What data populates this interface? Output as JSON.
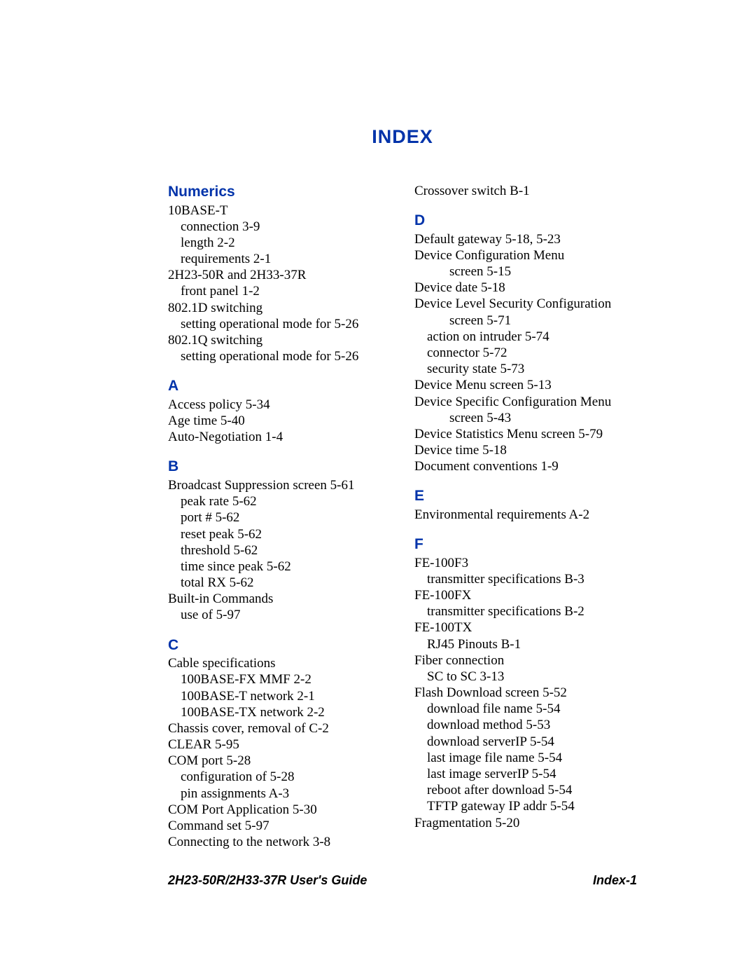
{
  "title": "INDEX",
  "footer": {
    "left": "2H23-50R/2H33-37R User's Guide",
    "right": "Index-1"
  },
  "colors": {
    "heading_blue": "#0033aa",
    "text_black": "#000000",
    "background": "#ffffff"
  },
  "typography": {
    "title_font": "Arial",
    "title_size_pt": 20,
    "title_weight": "bold",
    "section_font": "Arial",
    "section_size_pt": 16,
    "section_weight": "bold",
    "body_font": "Times New Roman",
    "body_size_pt": 14
  },
  "left_col": {
    "sections": {
      "Numerics": {
        "label": "Numerics",
        "items": [
          {
            "t": "10BASE-T",
            "i": 0
          },
          {
            "t": "connection  3-9",
            "i": 1
          },
          {
            "t": "length  2-2",
            "i": 1
          },
          {
            "t": "requirements  2-1",
            "i": 1
          },
          {
            "t": "2H23-50R and 2H33-37R",
            "i": 0
          },
          {
            "t": "front panel  1-2",
            "i": 1
          },
          {
            "t": "802.1D switching",
            "i": 0
          },
          {
            "t": "setting operational mode for  5-26",
            "i": 1
          },
          {
            "t": "802.1Q switching",
            "i": 0
          },
          {
            "t": "setting operational mode for  5-26",
            "i": 1
          }
        ]
      },
      "A": {
        "label": "A",
        "items": [
          {
            "t": "Access policy  5-34",
            "i": 0
          },
          {
            "t": "Age time  5-40",
            "i": 0
          },
          {
            "t": "Auto-Negotiation  1-4",
            "i": 0
          }
        ]
      },
      "B": {
        "label": "B",
        "items": [
          {
            "t": "Broadcast Suppression screen  5-61",
            "i": 0
          },
          {
            "t": "peak rate  5-62",
            "i": 1
          },
          {
            "t": "port #  5-62",
            "i": 1
          },
          {
            "t": "reset peak  5-62",
            "i": 1
          },
          {
            "t": "threshold  5-62",
            "i": 1
          },
          {
            "t": "time since peak  5-62",
            "i": 1
          },
          {
            "t": "total RX  5-62",
            "i": 1
          },
          {
            "t": "Built-in Commands",
            "i": 0
          },
          {
            "t": "use of  5-97",
            "i": 1
          }
        ]
      },
      "C": {
        "label": "C",
        "items": [
          {
            "t": "Cable specifications",
            "i": 0
          },
          {
            "t": "100BASE-FX MMF  2-2",
            "i": 1
          },
          {
            "t": "100BASE-T network  2-1",
            "i": 1
          },
          {
            "t": "100BASE-TX network  2-2",
            "i": 1
          },
          {
            "t": "Chassis cover, removal of  C-2",
            "i": 0
          },
          {
            "t": "CLEAR  5-95",
            "i": 0
          },
          {
            "t": "COM port  5-28",
            "i": 0
          },
          {
            "t": "configuration of  5-28",
            "i": 1
          },
          {
            "t": "pin assignments  A-3",
            "i": 1
          },
          {
            "t": "COM Port Application  5-30",
            "i": 0
          },
          {
            "t": "Command set  5-97",
            "i": 0
          },
          {
            "t": "Connecting to the network  3-8",
            "i": 0
          }
        ]
      }
    }
  },
  "right_col": {
    "top_line": "Crossover switch  B-1",
    "sections": {
      "D": {
        "label": "D",
        "items": [
          {
            "t": "Default gateway  5-18, 5-23",
            "i": 0
          },
          {
            "t": "Device Configuration Menu",
            "i": 0
          },
          {
            "t": "screen  5-15",
            "i": 2
          },
          {
            "t": "Device date  5-18",
            "i": 0
          },
          {
            "t": "Device Level Security Configuration",
            "i": 0
          },
          {
            "t": "screen  5-71",
            "i": 2
          },
          {
            "t": "action on intruder  5-74",
            "i": 1
          },
          {
            "t": "connector  5-72",
            "i": 1
          },
          {
            "t": "security state  5-73",
            "i": 1
          },
          {
            "t": "Device Menu screen  5-13",
            "i": 0
          },
          {
            "t": "Device Specific Configuration Menu",
            "i": 0
          },
          {
            "t": "screen  5-43",
            "i": 2
          },
          {
            "t": "Device Statistics Menu screen  5-79",
            "i": 0
          },
          {
            "t": "Device time  5-18",
            "i": 0
          },
          {
            "t": "Document conventions  1-9",
            "i": 0
          }
        ]
      },
      "E": {
        "label": "E",
        "items": [
          {
            "t": "Environmental requirements  A-2",
            "i": 0
          }
        ]
      },
      "F": {
        "label": "F",
        "items": [
          {
            "t": "FE-100F3",
            "i": 0
          },
          {
            "t": "transmitter specifications  B-3",
            "i": 1
          },
          {
            "t": "FE-100FX",
            "i": 0
          },
          {
            "t": "transmitter specifications  B-2",
            "i": 1
          },
          {
            "t": "FE-100TX",
            "i": 0
          },
          {
            "t": "RJ45 Pinouts  B-1",
            "i": 1
          },
          {
            "t": "Fiber connection",
            "i": 0
          },
          {
            "t": "SC to SC  3-13",
            "i": 1
          },
          {
            "t": "Flash Download screen  5-52",
            "i": 0
          },
          {
            "t": "download file name  5-54",
            "i": 1
          },
          {
            "t": "download method  5-53",
            "i": 1
          },
          {
            "t": "download serverIP  5-54",
            "i": 1
          },
          {
            "t": "last image file name  5-54",
            "i": 1
          },
          {
            "t": "last image serverIP  5-54",
            "i": 1
          },
          {
            "t": "reboot after download  5-54",
            "i": 1
          },
          {
            "t": "TFTP gateway IP addr  5-54",
            "i": 1
          },
          {
            "t": "Fragmentation  5-20",
            "i": 0
          }
        ]
      }
    }
  }
}
